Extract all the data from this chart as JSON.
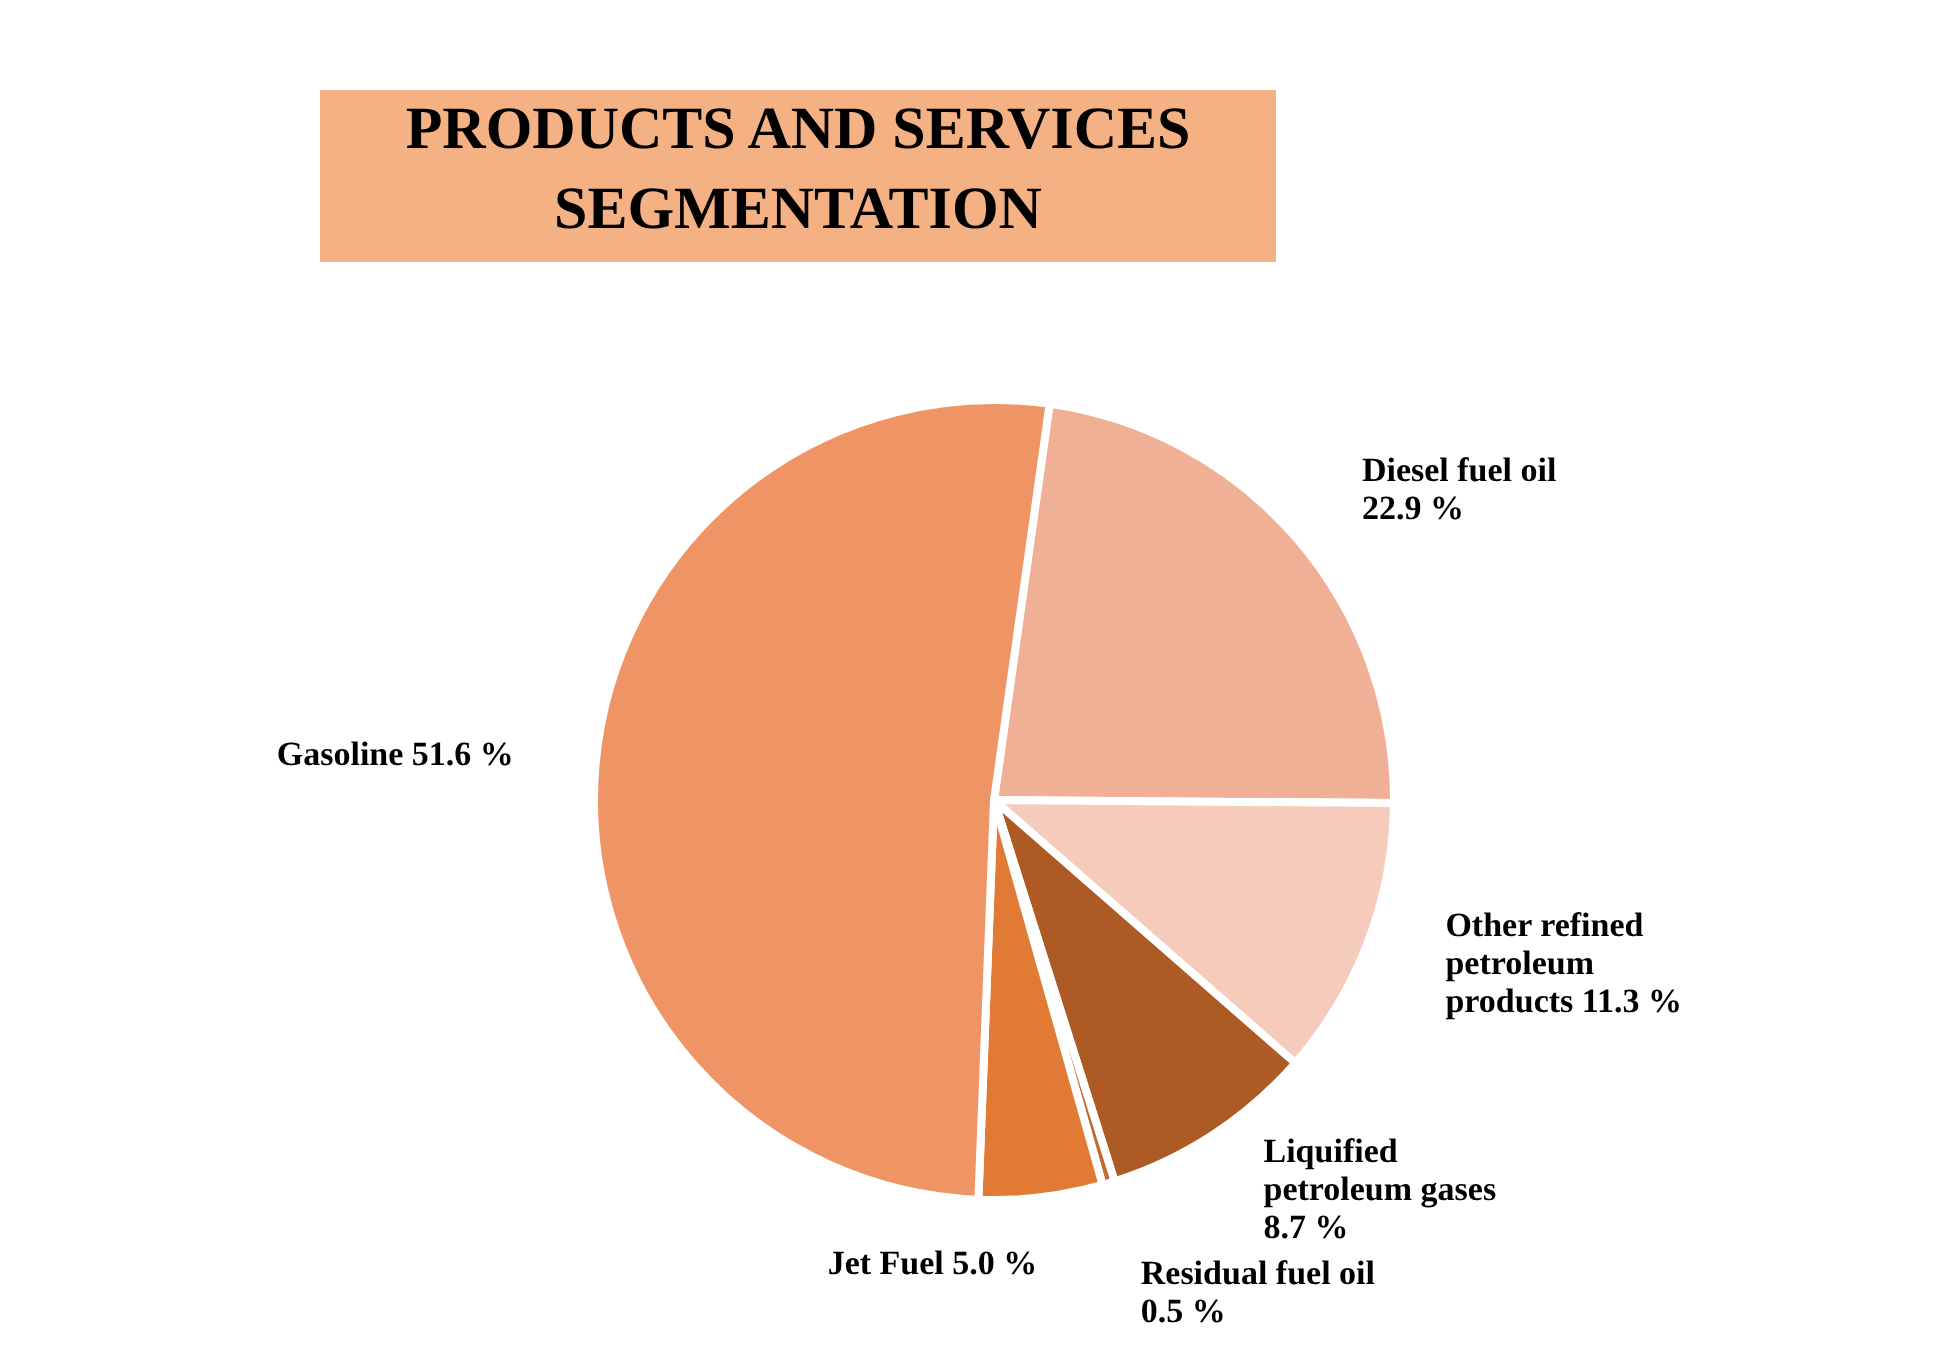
{
  "chart_data": {
    "type": "pie",
    "title": "PRODUCTS AND SERVICES SEGMENTATION",
    "categories": [
      "Diesel fuel oil",
      "Other refined petroleum products",
      "Liquified petroleum gases",
      "Residual fuel oil",
      "Jet Fuel",
      "Gasoline"
    ],
    "values": [
      22.9,
      11.3,
      8.7,
      0.5,
      5.0,
      51.6
    ],
    "colors": [
      "#f0b096",
      "#f5cbbb",
      "#ad5a24",
      "#c26a30",
      "#e07a35",
      "#ef9465"
    ],
    "value_labels": [
      "22.9 %",
      "11.3 %",
      "8.7 %",
      "0.5 %",
      "5.0 %",
      "51.6 %"
    ]
  }
}
